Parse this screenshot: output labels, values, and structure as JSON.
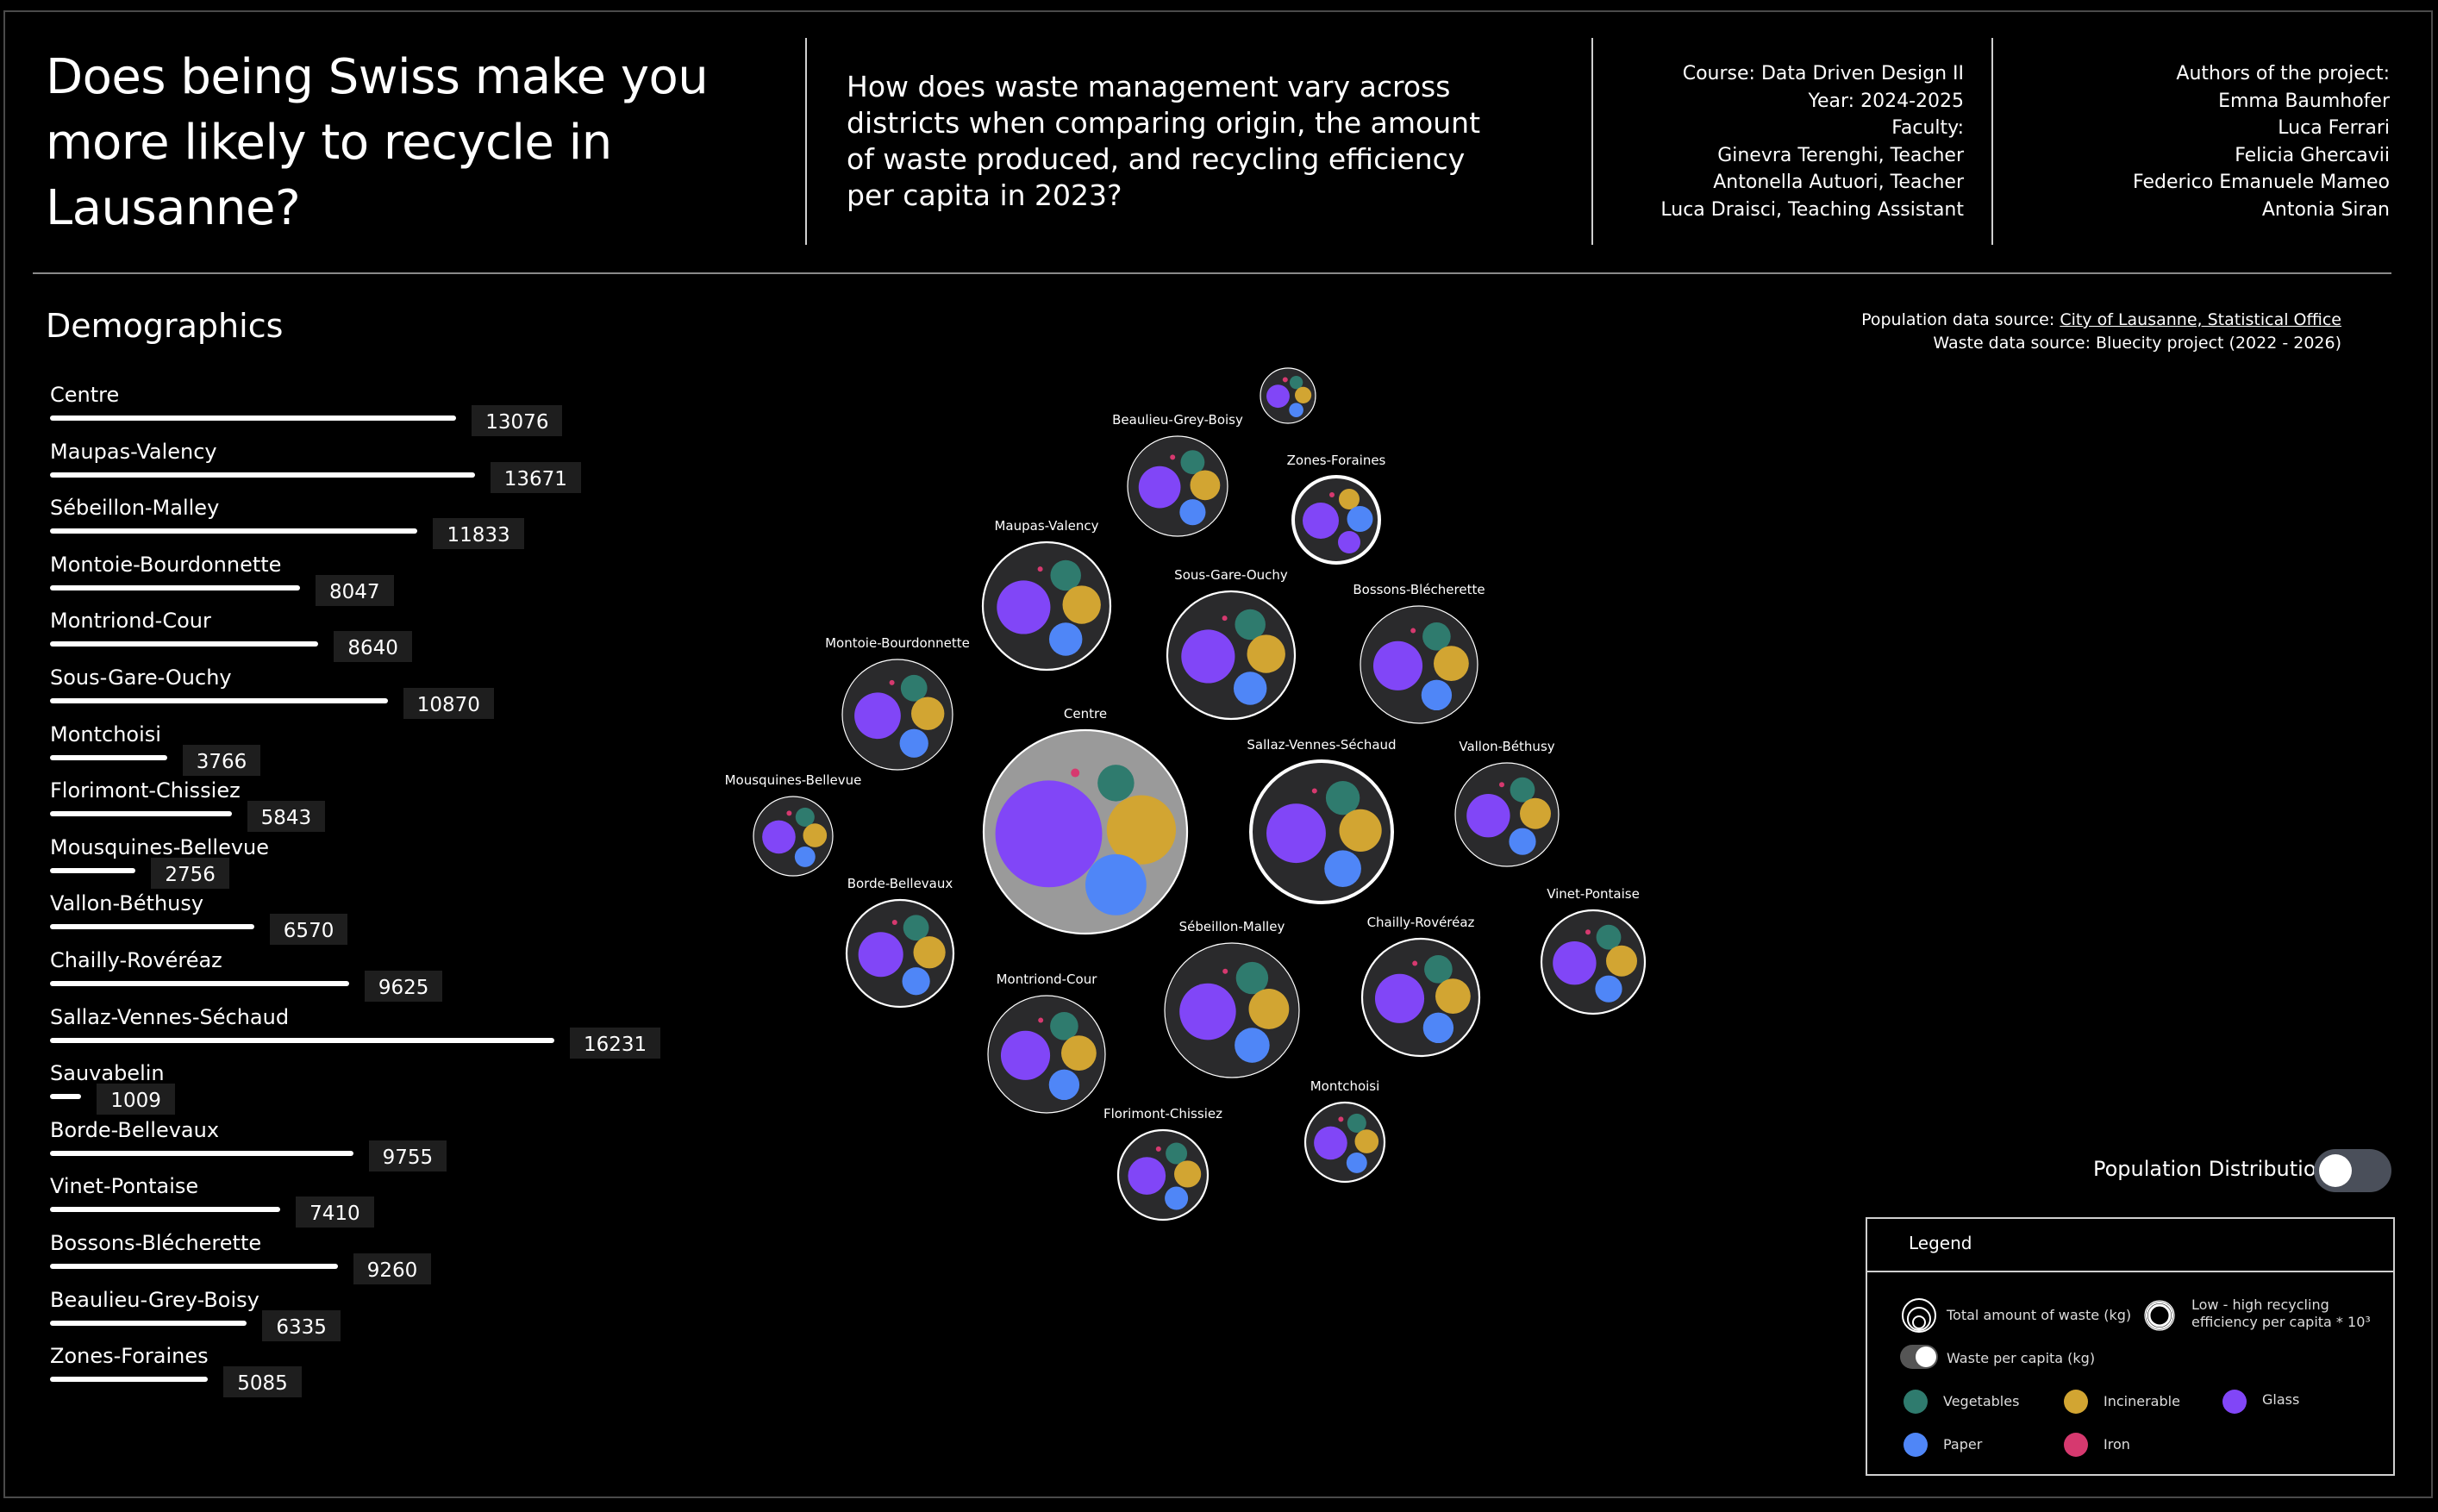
{
  "header": {
    "title": "Does being Swiss make you more likely to recycle in Lausanne?",
    "question": "How does waste management vary across districts when comparing origin, the amount of waste produced, and recycling efficiency per capita in 2023?",
    "course_info": [
      "Course: Data Driven Design II",
      "Year: 2024-2025",
      "Faculty:",
      "Ginevra Terenghi, Teacher",
      "Antonella Autuori, Teacher",
      "Luca Draisci, Teaching Assistant"
    ],
    "authors": [
      "Authors of the project:",
      "Emma Baumhofer",
      "Luca Ferrari",
      "Felicia Ghercavii",
      "Federico Emanuele Mameo",
      "Antonia Siran"
    ]
  },
  "demographics": {
    "title": "Demographics",
    "population_source_label": "Population data source: ",
    "population_source_link": "City of Lausanne, Statistical Office",
    "waste_source": "Waste data source: Bluecity project (2022 - 2026)"
  },
  "colors": {
    "Vegetables": "#2f7b6e",
    "Incinerable": "#d2a532",
    "Glass": "#8146f7",
    "Paper": "#4f86f7",
    "Iron": "#d6396f",
    "bubble_bg": "#2a2a2c",
    "centre_bg": "#9a9a9a"
  },
  "chart_data": [
    {
      "type": "bar",
      "title": "",
      "categories": [
        "Centre",
        "Maupas-Valency",
        "Sébeillon-Malley",
        "Montoie-Bourdonnette",
        "Montriond-Cour",
        "Sous-Gare-Ouchy",
        "Montchoisi",
        "Florimont-Chissiez",
        "Mousquines-Bellevue",
        "Vallon-Béthusy",
        "Chailly-Rovéréaz",
        "Sallaz-Vennes-Séchaud",
        "Sauvabelin",
        "Borde-Bellevaux",
        "Vinet-Pontaise",
        "Bossons-Blécherette",
        "Beaulieu-Grey-Boisy",
        "Zones-Foraines"
      ],
      "values": [
        13076,
        13671,
        11833,
        8047,
        8640,
        10870,
        3766,
        5843,
        2756,
        6570,
        9625,
        16231,
        1009,
        9755,
        7410,
        9260,
        6335,
        5085
      ]
    },
    {
      "type": "scatter",
      "title": "",
      "series_names": [
        "Vegetables",
        "Incinerable",
        "Glass",
        "Paper",
        "Iron"
      ],
      "districts": [
        {
          "name": "",
          "size": 0.5,
          "efficiency": "low",
          "parts": [
            0.06,
            0.06,
            0.2,
            0.06,
            0
          ]
        },
        {
          "name": "Beaulieu-Grey-Boisy",
          "size": 1.0,
          "efficiency": "low",
          "parts": [
            0.12,
            0.2,
            0.34,
            0.14,
            0.01
          ]
        },
        {
          "name": "Zones-Foraines",
          "size": 0.85,
          "efficiency": "high",
          "parts": [
            0.2,
            0.08,
            0.09,
            0.11,
            0.01
          ]
        },
        {
          "name": "Maupas-Valency",
          "size": 1.28,
          "efficiency": "medium",
          "parts": [
            0.18,
            0.3,
            0.5,
            0.16,
            0.01
          ]
        },
        {
          "name": "Sous-Gare-Ouchy",
          "size": 1.28,
          "efficiency": "medium",
          "parts": [
            0.14,
            0.3,
            0.5,
            0.22,
            0.01
          ]
        },
        {
          "name": "Bossons-Blécherette",
          "size": 1.2,
          "efficiency": "low",
          "parts": [
            0.11,
            0.27,
            0.42,
            0.08,
            0.01
          ]
        },
        {
          "name": "Montoie-Bourdonnette",
          "size": 1.12,
          "efficiency": "low",
          "parts": [
            0.12,
            0.16,
            0.42,
            0.08,
            0.01
          ]
        },
        {
          "name": "Centre",
          "size": 2.0,
          "efficiency": "medium",
          "parts": [
            0.2,
            0.6,
            1.75,
            0.5,
            0.01
          ]
        },
        {
          "name": "Sallaz-Vennes-Séchaud",
          "size": 1.42,
          "efficiency": "high",
          "parts": [
            0.44,
            0.34,
            0.46,
            0.12,
            0.01
          ]
        },
        {
          "name": "Vallon-Béthusy",
          "size": 1.04,
          "efficiency": "low",
          "parts": [
            0.09,
            0.15,
            0.3,
            0.06,
            0.01
          ]
        },
        {
          "name": "Mousquines-Bellevue",
          "size": 0.8,
          "efficiency": "low",
          "parts": [
            0.03,
            0.1,
            0.14,
            0.03,
            0.01
          ]
        },
        {
          "name": "Borde-Bellevaux",
          "size": 1.08,
          "efficiency": "medium",
          "parts": [
            0.14,
            0.18,
            0.32,
            0.08,
            0.01
          ]
        },
        {
          "name": "Vinet-Pontaise",
          "size": 1.04,
          "efficiency": "medium",
          "parts": [
            0.1,
            0.2,
            0.28,
            0.08,
            0.01
          ]
        },
        {
          "name": "Chailly-Rovéréaz",
          "size": 1.18,
          "efficiency": "medium",
          "parts": [
            0.24,
            0.26,
            0.38,
            0.08,
            0.01
          ]
        },
        {
          "name": "Sébeillon-Malley",
          "size": 1.34,
          "efficiency": "low",
          "parts": [
            0.2,
            0.24,
            0.74,
            0.16,
            0.01
          ]
        },
        {
          "name": "Montriond-Cour",
          "size": 1.18,
          "efficiency": "low",
          "parts": [
            0.12,
            0.24,
            0.48,
            0.09,
            0.01
          ]
        },
        {
          "name": "Florimont-Chissiez",
          "size": 0.92,
          "efficiency": "medium",
          "parts": [
            0.07,
            0.12,
            0.2,
            0.05,
            0.01
          ]
        },
        {
          "name": "Montchoisi",
          "size": 0.8,
          "efficiency": "medium",
          "parts": [
            0.04,
            0.07,
            0.14,
            0.04,
            0.01
          ]
        }
      ]
    }
  ],
  "toggle": {
    "label": "Population Distribution",
    "state": "off"
  },
  "legend": {
    "title": "Legend",
    "total_waste": "Total amount of waste (kg)",
    "efficiency_line1": "Low - high recycling",
    "efficiency_line2": "efficiency per capita * 10³",
    "per_capita": "Waste per capita (kg)",
    "categories": [
      "Vegetables",
      "Incinerable",
      "Glass",
      "Paper",
      "Iron"
    ]
  }
}
